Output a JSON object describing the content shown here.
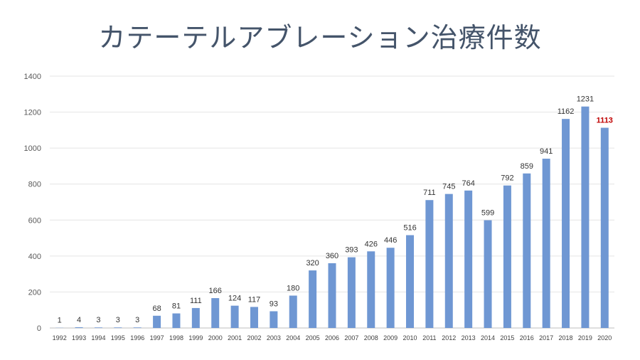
{
  "chart_data": {
    "type": "bar",
    "title": "カテーテルアブレーション治療件数",
    "xlabel": "",
    "ylabel": "",
    "ylim": [
      0,
      1400
    ],
    "yticks": [
      0,
      200,
      400,
      600,
      800,
      1000,
      1200,
      1400
    ],
    "grid": true,
    "bar_color": "#6f97d3",
    "highlight_label_color": "#c00000",
    "highlight_category": "2020",
    "categories": [
      "1992",
      "1993",
      "1994",
      "1995",
      "1996",
      "1997",
      "1998",
      "1999",
      "2000",
      "2001",
      "2002",
      "2003",
      "2004",
      "2005",
      "2006",
      "2007",
      "2008",
      "2009",
      "2010",
      "2011",
      "2012",
      "2013",
      "2014",
      "2015",
      "2016",
      "2017",
      "2018",
      "2019",
      "2020"
    ],
    "values": [
      1,
      4,
      3,
      3,
      3,
      68,
      81,
      111,
      166,
      124,
      117,
      93,
      180,
      320,
      360,
      393,
      426,
      446,
      516,
      711,
      745,
      764,
      599,
      792,
      859,
      941,
      1162,
      1231,
      1113
    ]
  }
}
